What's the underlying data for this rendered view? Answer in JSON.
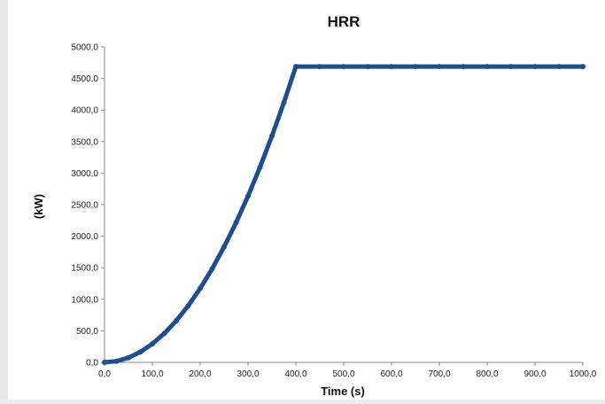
{
  "chart_data": {
    "type": "scatter",
    "title": "HRR",
    "xlabel": "Time (s)",
    "ylabel": "(kW)",
    "xlim": [
      0,
      1000
    ],
    "ylim": [
      0,
      5000
    ],
    "x_ticks": [
      "0,0",
      "100,0",
      "200,0",
      "300,0",
      "400,0",
      "500,0",
      "600,0",
      "700,0",
      "800,0",
      "900,0",
      "1000,0"
    ],
    "y_ticks": [
      "0,0",
      "500,0",
      "1000,0",
      "1500,0",
      "2000,0",
      "2500,0",
      "3000,0",
      "3500,0",
      "4000,0",
      "4500,0",
      "5000,0"
    ],
    "grid": false,
    "legend": "none",
    "series": [
      {
        "color": "#1f4e8c",
        "x": [
          0,
          25,
          50,
          75,
          100,
          125,
          150,
          175,
          200,
          225,
          250,
          275,
          300,
          325,
          350,
          375,
          400,
          450,
          500,
          550,
          600,
          650,
          700,
          750,
          800,
          850,
          900,
          950,
          1000
        ],
        "y": [
          0,
          18,
          73,
          165,
          293,
          458,
          659,
          897,
          1172,
          1483,
          1831,
          2215,
          2636,
          3094,
          3588,
          4119,
          4690,
          4690,
          4690,
          4690,
          4690,
          4690,
          4690,
          4690,
          4690,
          4690,
          4690,
          4690,
          4690
        ]
      }
    ]
  }
}
